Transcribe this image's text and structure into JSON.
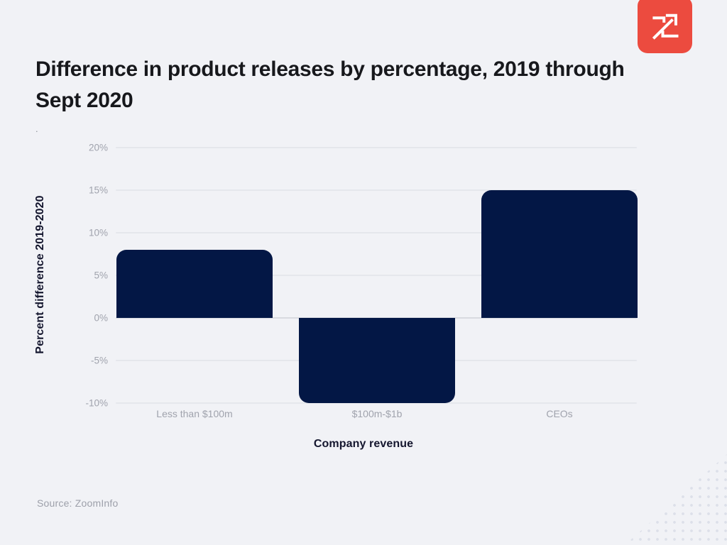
{
  "page": {
    "background_color": "#f1f2f6"
  },
  "logo": {
    "brand": "ZoomInfo",
    "badge_color": "#ec4b3f",
    "glyph_color": "#ffffff"
  },
  "header": {
    "title": "Difference in product releases by percentage, 2019 through Sept 2020",
    "stray_dot": "."
  },
  "source": {
    "text": "Source: ZoomInfo"
  },
  "chart_data": {
    "type": "bar",
    "title": "Difference in product releases by percentage, 2019 through Sept 2020",
    "categories": [
      "Less than $100m",
      "$100m-$1b",
      "CEOs"
    ],
    "values": [
      8,
      -10,
      15
    ],
    "xlabel": "Company revenue",
    "ylabel": "Percent difference 2019-2020",
    "ylim": [
      -10,
      20
    ],
    "ytick_step": 5,
    "ytick_labels": [
      "20%",
      "15%",
      "10%",
      "5%",
      "0%",
      "-5%",
      "-10%"
    ],
    "grid": true,
    "legend": false,
    "bar_color": "#031745",
    "grid_color": "#e5e7ec",
    "zero_line_color": "#d8dae0",
    "tick_label_color": "#a0a3ad"
  }
}
